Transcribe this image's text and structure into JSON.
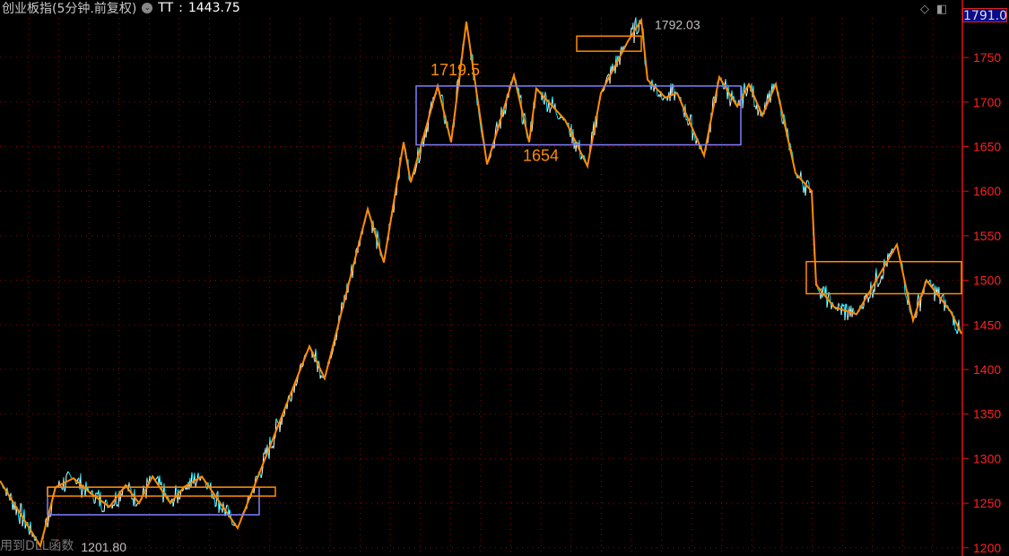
{
  "header": {
    "title": "创业板指(5分钟.前复权)",
    "indicator_icon": "dropdown-circle-icon",
    "indicator_label": "TT",
    "indicator_value": "1443.75"
  },
  "footer": {
    "note": "用到DLL函数"
  },
  "toolbar": {
    "icons": [
      "diamond-icon",
      "panel-toggle-icon"
    ]
  },
  "current_price_label": "1791.0",
  "colors": {
    "background": "#000000",
    "axis": "#e01010",
    "grid": "#a00000",
    "zigzag": "#ff8c00",
    "box_purple": "#8080ff",
    "box_orange": "#ff8c00",
    "price_up": "#ffffff",
    "price_down": "#00e5ff"
  },
  "chart_data": {
    "type": "line",
    "title": "",
    "yaxis_ticks": [
      1200,
      1250,
      1300,
      1350,
      1400,
      1450,
      1500,
      1550,
      1600,
      1650,
      1700,
      1750
    ],
    "ylim": [
      1195,
      1800
    ],
    "xlim": [
      0,
      1072
    ],
    "grid": true,
    "series": [
      {
        "style": "zigzag",
        "points": [
          [
            0,
            1275
          ],
          [
            45,
            1202
          ],
          [
            62,
            1268
          ],
          [
            82,
            1278
          ],
          [
            100,
            1262
          ],
          [
            122,
            1246
          ],
          [
            140,
            1270
          ],
          [
            155,
            1250
          ],
          [
            170,
            1280
          ],
          [
            190,
            1250
          ],
          [
            205,
            1268
          ],
          [
            225,
            1280
          ],
          [
            265,
            1222
          ],
          [
            345,
            1426
          ],
          [
            362,
            1390
          ],
          [
            410,
            1580
          ],
          [
            428,
            1520
          ],
          [
            450,
            1655
          ],
          [
            458,
            1610
          ],
          [
            488,
            1718
          ],
          [
            503,
            1655
          ],
          [
            520,
            1790
          ],
          [
            543,
            1630
          ],
          [
            573,
            1730
          ],
          [
            590,
            1655
          ],
          [
            598,
            1715
          ],
          [
            630,
            1680
          ],
          [
            655,
            1628
          ],
          [
            670,
            1710
          ],
          [
            700,
            1768
          ],
          [
            715,
            1792
          ],
          [
            722,
            1725
          ],
          [
            742,
            1705
          ],
          [
            755,
            1710
          ],
          [
            785,
            1640
          ],
          [
            802,
            1728
          ],
          [
            822,
            1695
          ],
          [
            835,
            1720
          ],
          [
            850,
            1685
          ],
          [
            865,
            1720
          ],
          [
            887,
            1620
          ],
          [
            905,
            1600
          ],
          [
            910,
            1495
          ],
          [
            930,
            1470
          ],
          [
            955,
            1462
          ],
          [
            1000,
            1540
          ],
          [
            1018,
            1455
          ],
          [
            1033,
            1500
          ],
          [
            1060,
            1465
          ],
          [
            1072,
            1440
          ]
        ]
      }
    ],
    "boxes": [
      {
        "color": "purple",
        "x": [
          53,
          289
        ],
        "y": [
          1237,
          1268
        ]
      },
      {
        "color": "orange",
        "x": [
          53,
          307
        ],
        "y": [
          1258,
          1268
        ]
      },
      {
        "color": "purple",
        "x": [
          464,
          826
        ],
        "y": [
          1652,
          1718
        ]
      },
      {
        "color": "orange",
        "x": [
          643,
          715
        ],
        "y": [
          1757,
          1774
        ]
      },
      {
        "color": "orange",
        "x": [
          899,
          1072
        ],
        "y": [
          1485,
          1521
        ]
      }
    ],
    "annotations": [
      {
        "text": "1719.5",
        "x": 480,
        "y": 1730,
        "color": "orange"
      },
      {
        "text": "1654",
        "x": 583,
        "y": 1634,
        "color": "orange"
      },
      {
        "text": "1792.03",
        "x": 730,
        "y": 1782,
        "color": "gray"
      },
      {
        "text": "1201.80",
        "x": 58,
        "y": 1196,
        "color": "gray"
      }
    ]
  }
}
